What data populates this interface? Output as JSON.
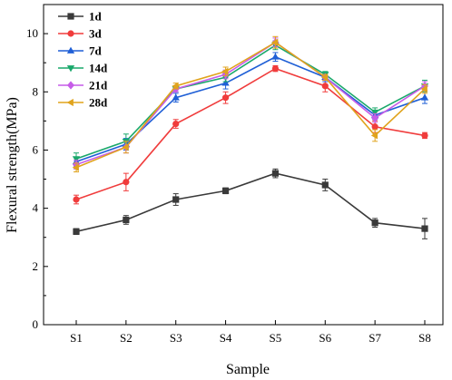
{
  "chart_data": {
    "type": "line",
    "title": "",
    "xlabel": "Sample",
    "ylabel": "Flexural strength(MPa)",
    "categories": [
      "S1",
      "S2",
      "S3",
      "S4",
      "S5",
      "S6",
      "S7",
      "S8"
    ],
    "ylim": [
      0,
      11
    ],
    "yticks": [
      0,
      2,
      4,
      6,
      8,
      10
    ],
    "grid": false,
    "legend_position": "top-left",
    "series": [
      {
        "name": "1d",
        "color": "#3a3a3a",
        "marker": "square",
        "values": [
          3.2,
          3.6,
          4.3,
          4.6,
          5.2,
          4.8,
          3.5,
          3.3
        ],
        "errors": [
          0.1,
          0.15,
          0.2,
          0.1,
          0.15,
          0.2,
          0.15,
          0.35
        ]
      },
      {
        "name": "3d",
        "color": "#f03c3c",
        "marker": "circle",
        "values": [
          4.3,
          4.9,
          6.9,
          7.8,
          8.8,
          8.2,
          6.8,
          6.5
        ],
        "errors": [
          0.15,
          0.3,
          0.15,
          0.2,
          0.1,
          0.2,
          0.2,
          0.1
        ]
      },
      {
        "name": "7d",
        "color": "#1f5fd6",
        "marker": "triangle-up",
        "values": [
          5.6,
          6.2,
          7.8,
          8.3,
          9.2,
          8.5,
          7.2,
          7.8
        ],
        "errors": [
          0.15,
          0.2,
          0.15,
          0.2,
          0.15,
          0.15,
          0.15,
          0.2
        ]
      },
      {
        "name": "14d",
        "color": "#1aa86b",
        "marker": "triangle-down",
        "values": [
          5.7,
          6.3,
          8.1,
          8.5,
          9.6,
          8.6,
          7.3,
          8.2
        ],
        "errors": [
          0.2,
          0.25,
          0.1,
          0.15,
          0.15,
          0.1,
          0.15,
          0.2
        ]
      },
      {
        "name": "21d",
        "color": "#c65ce8",
        "marker": "diamond",
        "values": [
          5.5,
          6.1,
          8.1,
          8.6,
          9.7,
          8.5,
          7.1,
          8.2
        ],
        "errors": [
          0.15,
          0.2,
          0.1,
          0.15,
          0.15,
          0.1,
          0.15,
          0.15
        ]
      },
      {
        "name": "28d",
        "color": "#e0a31c",
        "marker": "triangle-left",
        "values": [
          5.4,
          6.1,
          8.2,
          8.7,
          9.7,
          8.5,
          6.5,
          8.1
        ],
        "errors": [
          0.15,
          0.2,
          0.1,
          0.15,
          0.2,
          0.1,
          0.2,
          0.15
        ]
      }
    ]
  }
}
